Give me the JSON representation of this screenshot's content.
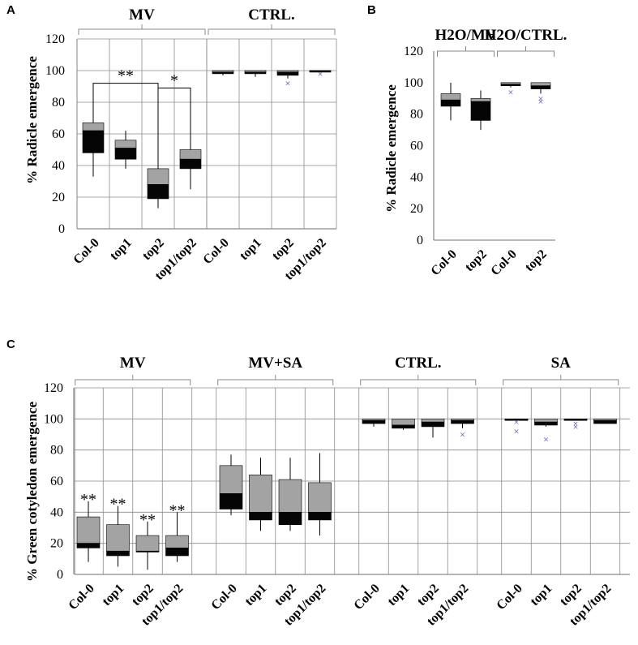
{
  "figure": {
    "ylabel_A": "% Radicle emergence",
    "ylabel_B": "% Radicle emergence",
    "ylabel_C": "% Green cotyledon emergence"
  },
  "chart_data": [
    {
      "panel": "A",
      "type": "boxplot",
      "ylabel": "% Radicle emergence",
      "ylim": [
        0,
        120
      ],
      "yticks": [
        0,
        20,
        40,
        60,
        80,
        100,
        120
      ],
      "grid": true,
      "groups": [
        {
          "title": "MV",
          "categories": [
            "Col-0",
            "top1",
            "top2",
            "top1/top2"
          ]
        },
        {
          "title": "CTRL.",
          "categories": [
            "Col-0",
            "top1",
            "top2",
            "top1/top2"
          ]
        }
      ],
      "boxes": [
        {
          "group": "MV",
          "category": "Col-0",
          "min": 33,
          "q1": 48,
          "median": 62,
          "q3": 67,
          "max": 77,
          "outliers": []
        },
        {
          "group": "MV",
          "category": "top1",
          "min": 38,
          "q1": 44,
          "median": 51,
          "q3": 56,
          "max": 62,
          "outliers": []
        },
        {
          "group": "MV",
          "category": "top2",
          "min": 13,
          "q1": 19,
          "median": 28,
          "q3": 38,
          "max": 44,
          "outliers": []
        },
        {
          "group": "MV",
          "category": "top1/top2",
          "min": 25,
          "q1": 38,
          "median": 44,
          "q3": 50,
          "max": 55,
          "outliers": []
        },
        {
          "group": "CTRL.",
          "category": "Col-0",
          "min": 97,
          "q1": 98,
          "median": 99,
          "q3": 100,
          "max": 100,
          "outliers": []
        },
        {
          "group": "CTRL.",
          "category": "top1",
          "min": 96,
          "q1": 98,
          "median": 99,
          "q3": 100,
          "max": 100,
          "outliers": []
        },
        {
          "group": "CTRL.",
          "category": "top2",
          "min": 95,
          "q1": 97,
          "median": 99,
          "q3": 100,
          "max": 100,
          "outliers": [
            92
          ]
        },
        {
          "group": "CTRL.",
          "category": "top1/top2",
          "min": 99,
          "q1": 99,
          "median": 100,
          "q3": 100,
          "max": 100,
          "outliers": [
            98
          ]
        }
      ],
      "annotations": [
        {
          "label": "**",
          "from": "MV/Col-0",
          "to": "MV/top2"
        },
        {
          "label": "*",
          "from": "MV/top2",
          "to": "MV/top1/top2"
        }
      ]
    },
    {
      "panel": "B",
      "type": "boxplot",
      "ylabel": "% Radicle emergence",
      "ylim": [
        0,
        120
      ],
      "yticks": [
        0,
        20,
        40,
        60,
        80,
        100,
        120
      ],
      "grid": false,
      "groups": [
        {
          "title": "H2O/MV",
          "categories": [
            "Col-0",
            "top2"
          ]
        },
        {
          "title": "H2O/CTRL.",
          "categories": [
            "Col-0",
            "top2"
          ]
        }
      ],
      "boxes": [
        {
          "group": "H2O/MV",
          "category": "Col-0",
          "min": 76,
          "q1": 85,
          "median": 89,
          "q3": 93,
          "max": 100,
          "outliers": []
        },
        {
          "group": "H2O/MV",
          "category": "top2",
          "min": 70,
          "q1": 76,
          "median": 88,
          "q3": 90,
          "max": 95,
          "outliers": []
        },
        {
          "group": "H2O/CTRL.",
          "category": "Col-0",
          "min": 97,
          "q1": 98,
          "median": 99,
          "q3": 100,
          "max": 100,
          "outliers": [
            94
          ]
        },
        {
          "group": "H2O/CTRL.",
          "category": "top2",
          "min": 93,
          "q1": 96,
          "median": 98,
          "q3": 100,
          "max": 100,
          "outliers": [
            90,
            88
          ]
        }
      ],
      "annotations": []
    },
    {
      "panel": "C",
      "type": "boxplot",
      "ylabel": "% Green cotyledon emergence",
      "ylim": [
        0,
        120
      ],
      "yticks": [
        0,
        20,
        40,
        60,
        80,
        100,
        120
      ],
      "grid": true,
      "groups": [
        {
          "title": "MV",
          "categories": [
            "Col-0",
            "top1",
            "top2",
            "top1/top2"
          ]
        },
        {
          "title": "MV+SA",
          "categories": [
            "Col-0",
            "top1",
            "top2",
            "top1/top2"
          ]
        },
        {
          "title": "CTRL.",
          "categories": [
            "Col-0",
            "top1",
            "top2",
            "top1/top2"
          ]
        },
        {
          "title": "SA",
          "categories": [
            "Col-0",
            "top1",
            "top2",
            "top1/top2"
          ]
        }
      ],
      "boxes": [
        {
          "group": "MV",
          "category": "Col-0",
          "min": 8,
          "q1": 17,
          "median": 20,
          "q3": 37,
          "max": 47,
          "outliers": []
        },
        {
          "group": "MV",
          "category": "top1",
          "min": 5,
          "q1": 12,
          "median": 15,
          "q3": 32,
          "max": 44,
          "outliers": []
        },
        {
          "group": "MV",
          "category": "top2",
          "min": 3,
          "q1": 15,
          "median": 15,
          "q3": 25,
          "max": 34,
          "outliers": []
        },
        {
          "group": "MV",
          "category": "top1/top2",
          "min": 8,
          "q1": 12,
          "median": 17,
          "q3": 25,
          "max": 40,
          "outliers": []
        },
        {
          "group": "MV+SA",
          "category": "Col-0",
          "min": 38,
          "q1": 42,
          "median": 52,
          "q3": 70,
          "max": 77,
          "outliers": []
        },
        {
          "group": "MV+SA",
          "category": "top1",
          "min": 28,
          "q1": 35,
          "median": 40,
          "q3": 64,
          "max": 75,
          "outliers": []
        },
        {
          "group": "MV+SA",
          "category": "top2",
          "min": 28,
          "q1": 32,
          "median": 40,
          "q3": 61,
          "max": 75,
          "outliers": []
        },
        {
          "group": "MV+SA",
          "category": "top1/top2",
          "min": 25,
          "q1": 35,
          "median": 40,
          "q3": 59,
          "max": 78,
          "outliers": []
        },
        {
          "group": "CTRL.",
          "category": "Col-0",
          "min": 95,
          "q1": 97,
          "median": 99,
          "q3": 100,
          "max": 100,
          "outliers": []
        },
        {
          "group": "CTRL.",
          "category": "top1",
          "min": 93,
          "q1": 94,
          "median": 96,
          "q3": 100,
          "max": 100,
          "outliers": []
        },
        {
          "group": "CTRL.",
          "category": "top2",
          "min": 88,
          "q1": 95,
          "median": 98,
          "q3": 100,
          "max": 100,
          "outliers": []
        },
        {
          "group": "CTRL.",
          "category": "top1/top2",
          "min": 94,
          "q1": 97,
          "median": 99,
          "q3": 100,
          "max": 100,
          "outliers": [
            90
          ]
        },
        {
          "group": "SA",
          "category": "Col-0",
          "min": 99,
          "q1": 99,
          "median": 100,
          "q3": 100,
          "max": 100,
          "outliers": [
            98,
            92
          ]
        },
        {
          "group": "SA",
          "category": "top1",
          "min": 95,
          "q1": 96,
          "median": 98,
          "q3": 100,
          "max": 100,
          "outliers": [
            87
          ]
        },
        {
          "group": "SA",
          "category": "top2",
          "min": 99,
          "q1": 99,
          "median": 100,
          "q3": 100,
          "max": 100,
          "outliers": [
            97,
            95
          ]
        },
        {
          "group": "SA",
          "category": "top1/top2",
          "min": 97,
          "q1": 97,
          "median": 99,
          "q3": 100,
          "max": 100,
          "outliers": []
        }
      ],
      "annotations": [
        {
          "label": "**",
          "target": "MV/Col-0"
        },
        {
          "label": "**",
          "target": "MV/top1"
        },
        {
          "label": "**",
          "target": "MV/top2"
        },
        {
          "label": "**",
          "target": "MV/top1/top2"
        }
      ]
    }
  ]
}
